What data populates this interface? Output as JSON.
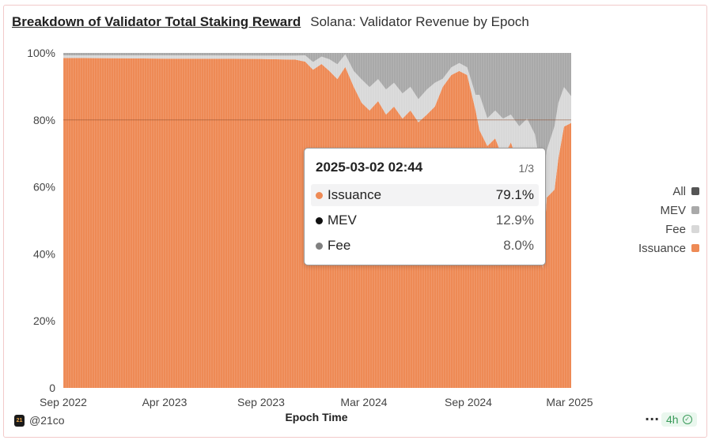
{
  "header": {
    "title": "Breakdown of Validator Total Staking Reward",
    "subtitle": "Solana: Validator Revenue by Epoch"
  },
  "tooltip": {
    "timestamp": "2025-03-02 02:44",
    "page": "1/3",
    "rows": [
      {
        "label": "Issuance",
        "value": "79.1%",
        "color": "#ee8a55"
      },
      {
        "label": "MEV",
        "value": "12.9%",
        "color": "#111111"
      },
      {
        "label": "Fee",
        "value": "8.0%",
        "color": "#808080"
      }
    ]
  },
  "legend": [
    {
      "label": "All",
      "color": "#555555"
    },
    {
      "label": "MEV",
      "color": "#a9a9a9"
    },
    {
      "label": "Fee",
      "color": "#d8d8d8"
    },
    {
      "label": "Issuance",
      "color": "#ee8a55"
    }
  ],
  "footer": {
    "author": "@21co",
    "logo_text": "21",
    "more": "···",
    "age": "4h"
  },
  "chart_data": {
    "type": "area",
    "stacked": "percent",
    "title": "",
    "xlabel": "Epoch Time",
    "ylabel": "",
    "ylim": [
      0,
      100
    ],
    "yticks": [
      "0",
      "20%",
      "40%",
      "60%",
      "80%",
      "100%"
    ],
    "xticks": [
      {
        "date": "2022-09-01",
        "label": "Sep 2022"
      },
      {
        "date": "2023-04-01",
        "label": "Apr 2023"
      },
      {
        "date": "2023-09-01",
        "label": "Sep 2023"
      },
      {
        "date": "2024-03-01",
        "label": "Mar 2024"
      },
      {
        "date": "2024-09-01",
        "label": "Sep 2024"
      },
      {
        "date": "2025-03-01",
        "label": "Mar 2025"
      }
    ],
    "x": [
      "2022-09-01",
      "2023-01-01",
      "2023-04-01",
      "2023-09-01",
      "2023-11-01",
      "2023-11-18",
      "2023-12-02",
      "2023-12-17",
      "2023-12-31",
      "2024-01-14",
      "2024-01-28",
      "2024-02-12",
      "2024-02-26",
      "2024-03-11",
      "2024-03-26",
      "2024-04-09",
      "2024-04-23",
      "2024-05-08",
      "2024-05-22",
      "2024-06-05",
      "2024-06-20",
      "2024-07-04",
      "2024-07-18",
      "2024-08-02",
      "2024-08-16",
      "2024-08-30",
      "2024-09-14",
      "2024-09-21",
      "2024-10-05",
      "2024-10-19",
      "2024-11-02",
      "2024-11-16",
      "2024-12-01",
      "2024-12-15",
      "2024-12-29",
      "2025-01-12",
      "2025-01-19",
      "2025-02-02",
      "2025-02-09",
      "2025-02-19",
      "2025-03-02"
    ],
    "series": [
      {
        "name": "Issuance",
        "color": "#ee8a55",
        "values": [
          98.5,
          98.4,
          98.3,
          98.2,
          98.0,
          97.4,
          95.0,
          96.7,
          94.6,
          92.2,
          95.8,
          89.9,
          85.1,
          82.8,
          85.6,
          81.6,
          84.0,
          80.4,
          82.8,
          79.3,
          81.6,
          84.0,
          89.9,
          93.4,
          94.6,
          93.4,
          82.8,
          76.9,
          72.2,
          74.5,
          68.6,
          73.3,
          66.3,
          69.8,
          61.6,
          35.6,
          56.8,
          59.2,
          68.6,
          78.0,
          79.1
        ]
      },
      {
        "name": "Fee",
        "color": "#d8d8d8",
        "values": [
          0.8,
          0.9,
          1.0,
          1.0,
          1.2,
          1.9,
          2.3,
          2.2,
          3.5,
          4.4,
          3.8,
          4.7,
          7.0,
          7.0,
          6.6,
          7.5,
          7.1,
          7.5,
          7.1,
          6.9,
          7.5,
          7.1,
          2.4,
          2.3,
          2.4,
          2.3,
          4.7,
          10.6,
          8.3,
          8.3,
          11.8,
          8.3,
          11.8,
          10.6,
          14.1,
          26.5,
          14.1,
          18.9,
          16.5,
          11.8,
          8.0
        ]
      },
      {
        "name": "MEV",
        "color": "#a9a9a9",
        "values": [
          0.7,
          0.7,
          0.7,
          0.8,
          0.8,
          0.7,
          2.7,
          1.1,
          1.9,
          3.4,
          0.4,
          5.4,
          7.9,
          10.2,
          7.8,
          10.9,
          8.9,
          12.1,
          10.1,
          13.8,
          10.9,
          8.9,
          7.7,
          4.3,
          3.0,
          4.3,
          12.5,
          12.5,
          19.5,
          17.2,
          19.6,
          18.4,
          21.9,
          19.6,
          24.3,
          37.9,
          29.1,
          21.9,
          14.9,
          10.2,
          12.9
        ]
      }
    ],
    "highlight_line": 80,
    "legend_position": "right"
  }
}
